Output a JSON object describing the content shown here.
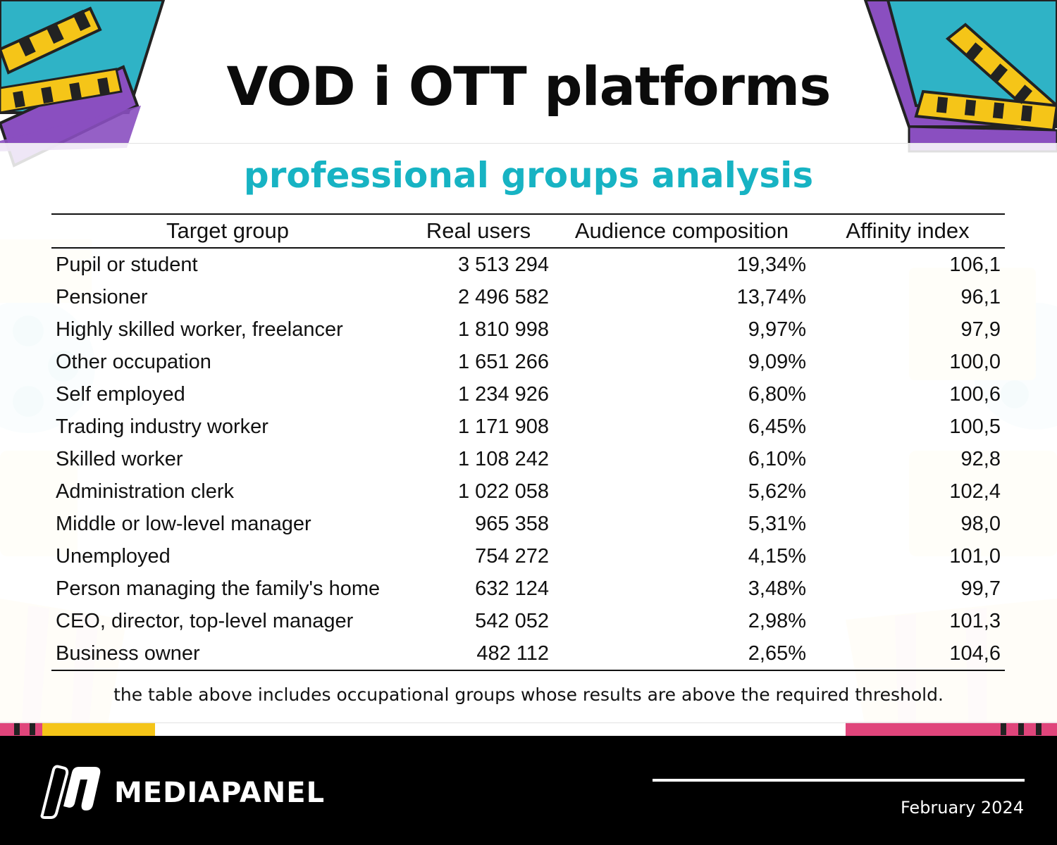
{
  "header": {
    "title": "VOD i OTT platforms",
    "subtitle": "professional groups analysis"
  },
  "table": {
    "columns": [
      "Target group",
      "Real users",
      "Audience composition",
      "Affinity index"
    ],
    "rows": [
      [
        "Pupil or student",
        "3 513 294",
        "19,34%",
        "106,1"
      ],
      [
        "Pensioner",
        "2 496 582",
        "13,74%",
        "96,1"
      ],
      [
        "Highly skilled worker, freelancer",
        "1 810 998",
        "9,97%",
        "97,9"
      ],
      [
        "Other occupation",
        "1 651 266",
        "9,09%",
        "100,0"
      ],
      [
        "Self employed",
        "1 234 926",
        "6,80%",
        "100,6"
      ],
      [
        "Trading industry worker",
        "1 171 908",
        "6,45%",
        "100,5"
      ],
      [
        "Skilled worker",
        "1 108 242",
        "6,10%",
        "92,8"
      ],
      [
        "Administration clerk",
        "1 022 058",
        "5,62%",
        "102,4"
      ],
      [
        "Middle or low-level manager",
        "965 358",
        "5,31%",
        "98,0"
      ],
      [
        "Unemployed",
        "754 272",
        "4,15%",
        "101,0"
      ],
      [
        "Person managing the family's home",
        "632 124",
        "3,48%",
        "99,7"
      ],
      [
        "CEO, director, top-level manager",
        "542 052",
        "2,98%",
        "101,3"
      ],
      [
        "Business owner",
        "482 112",
        "2,65%",
        "104,6"
      ]
    ]
  },
  "note": "the table above includes occupational groups whose results are above the required threshold.",
  "footer": {
    "brand": "MEDIAPANEL",
    "date": "February 2024",
    "logo_icon": "mediapanel-logo-icon"
  },
  "colors": {
    "subtitle": "#17b3c3",
    "footer_bg": "#000000",
    "clapper_purple": "#8a4fc0",
    "clapper_teal": "#2fb3c6",
    "clapper_yellow": "#f5c518"
  }
}
